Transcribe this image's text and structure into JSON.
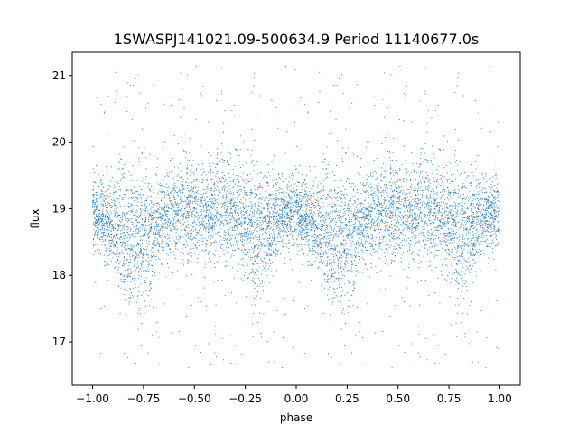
{
  "chart_data": {
    "type": "scatter",
    "title": "1SWASPJ141021.09-500634.9 Period 11140677.0s",
    "xlabel": "phase",
    "ylabel": "flux",
    "xlim": [
      -1.1,
      1.1
    ],
    "ylim": [
      16.35,
      21.35
    ],
    "x_ticks": [
      -1.0,
      -0.75,
      -0.5,
      -0.25,
      0.0,
      0.25,
      0.5,
      0.75,
      1.0
    ],
    "x_tick_labels": [
      "−1.00",
      "−0.75",
      "−0.50",
      "−0.25",
      "0.00",
      "0.25",
      "0.50",
      "0.75",
      "1.00"
    ],
    "y_ticks": [
      17,
      18,
      19,
      20,
      21
    ],
    "y_tick_labels": [
      "17",
      "18",
      "19",
      "20",
      "21"
    ],
    "grid": false,
    "point_color": "#1f77b4",
    "series": [
      {
        "phase_profile": {
          "phase": [
            0.0,
            0.05,
            0.1,
            0.15,
            0.2,
            0.25,
            0.3,
            0.35,
            0.4,
            0.45,
            0.5,
            0.55,
            0.6,
            0.65,
            0.7,
            0.75,
            0.8,
            0.85,
            0.9,
            0.95,
            1.0
          ],
          "median_flux": [
            18.9,
            18.85,
            18.8,
            18.6,
            18.5,
            18.55,
            18.7,
            18.85,
            18.95,
            19.0,
            18.95,
            18.9,
            18.95,
            19.05,
            19.0,
            18.8,
            18.6,
            18.7,
            18.85,
            18.9,
            18.9
          ],
          "spread": [
            0.25,
            0.3,
            0.35,
            0.45,
            0.5,
            0.5,
            0.4,
            0.35,
            0.35,
            0.35,
            0.35,
            0.35,
            0.4,
            0.4,
            0.4,
            0.45,
            0.5,
            0.4,
            0.3,
            0.25,
            0.25
          ]
        },
        "points_per_unit_phase": 4000,
        "outlier_fraction": 0.06,
        "outlier_range": [
          16.6,
          21.15
        ]
      }
    ]
  }
}
